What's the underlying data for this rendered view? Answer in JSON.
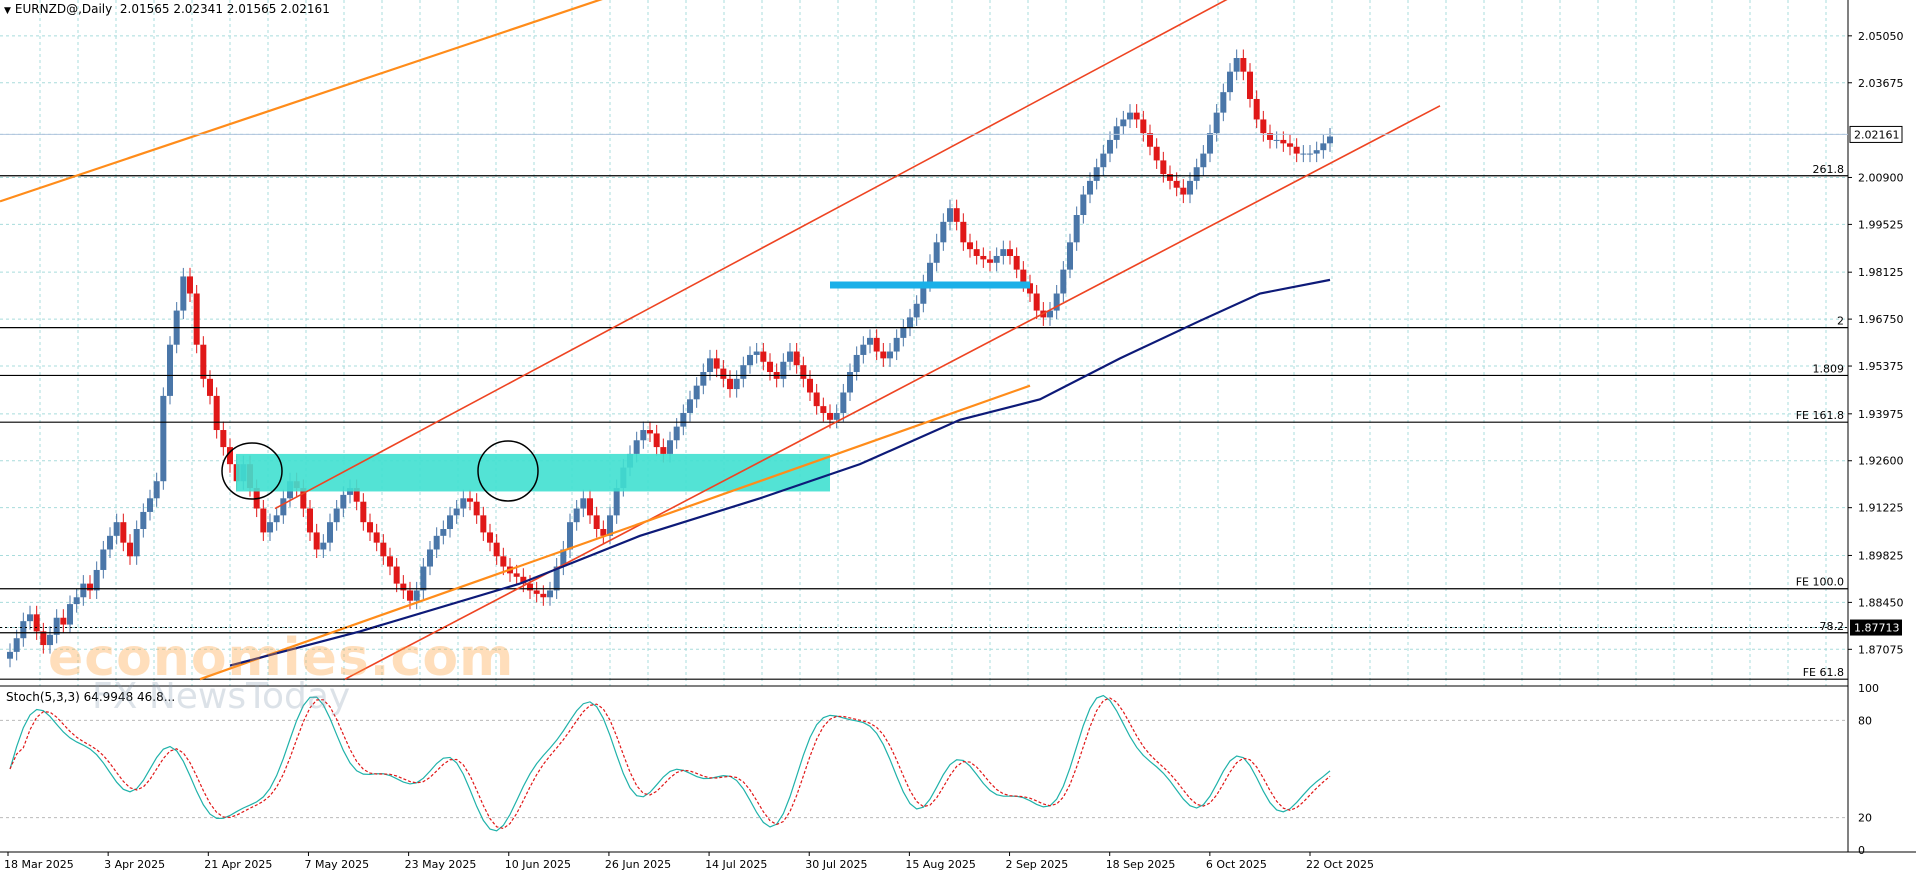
{
  "header": {
    "symbol": "EURNZD@,Daily",
    "ohlc": "2.01565 2.02341 2.01565 2.02161"
  },
  "watermark": {
    "line1": "economies.com",
    "line2": "FX NewsToday"
  },
  "colors": {
    "bull": "#4a76a8",
    "bear": "#e01818",
    "grid": "#a8dcdc",
    "channel": "#ee4422",
    "orange": "#ff8c1a",
    "ma": "#0d1a78",
    "zone": "#40e0d0",
    "cyan_line": "#1ab0e8",
    "stoch_main": "#20b2aa",
    "stoch_signal": "#e01818"
  },
  "chart_data": {
    "type": "candlestick",
    "title": "EURNZD@,Daily",
    "price_axis": {
      "range": [
        1.86,
        2.061
      ],
      "ticks": [
        "2.05050",
        "2.03675",
        "2.02161",
        "2.00900",
        "1.99525",
        "1.98125",
        "1.96750",
        "1.95375",
        "1.93975",
        "1.92600",
        "1.91225",
        "1.89825",
        "1.88450",
        "1.87713",
        "1.87075"
      ],
      "current_price": "2.02161",
      "dashed_price": "1.87713"
    },
    "date_axis": {
      "labels": [
        "18 Mar 2025",
        "3 Apr 2025",
        "21 Apr 2025",
        "7 May 2025",
        "23 May 2025",
        "10 Jun 2025",
        "26 Jun 2025",
        "14 Jul 2025",
        "30 Jul 2025",
        "15 Aug 2025",
        "2 Sep 2025",
        "18 Sep 2025",
        "6 Oct 2025",
        "22 Oct 2025"
      ]
    },
    "horizontal_levels": [
      {
        "label": "261.8",
        "price": 2.0095
      },
      {
        "label": "2",
        "price": 1.965
      },
      {
        "label": "1.809",
        "price": 1.951
      },
      {
        "label": "FE 161.8",
        "price": 1.9373
      },
      {
        "label": "FE 100.0",
        "price": 1.8885
      },
      {
        "label": "78.2",
        "price": 1.8756
      },
      {
        "label": "FE 61.8",
        "price": 1.862
      }
    ],
    "candles_close": [
      1.87,
      1.874,
      1.879,
      1.881,
      1.876,
      1.872,
      1.875,
      1.88,
      1.878,
      1.884,
      1.886,
      1.89,
      1.888,
      1.894,
      1.9,
      1.904,
      1.908,
      1.902,
      1.898,
      1.906,
      1.911,
      1.915,
      1.92,
      1.945,
      1.96,
      1.97,
      1.98,
      1.975,
      1.96,
      1.95,
      1.945,
      1.935,
      1.93,
      1.925,
      1.92,
      1.925,
      1.918,
      1.912,
      1.905,
      1.908,
      1.91,
      1.915,
      1.92,
      1.918,
      1.912,
      1.905,
      1.9,
      1.902,
      1.908,
      1.912,
      1.916,
      1.918,
      1.914,
      1.908,
      1.905,
      1.902,
      1.898,
      1.895,
      1.89,
      1.888,
      1.885,
      1.888,
      1.895,
      1.9,
      1.904,
      1.906,
      1.91,
      1.912,
      1.915,
      1.914,
      1.91,
      1.905,
      1.902,
      1.898,
      1.895,
      1.893,
      1.892,
      1.89,
      1.888,
      1.887,
      1.886,
      1.888,
      1.895,
      1.9,
      1.908,
      1.912,
      1.915,
      1.91,
      1.906,
      1.904,
      1.91,
      1.918,
      1.924,
      1.928,
      1.932,
      1.935,
      1.934,
      1.93,
      1.928,
      1.932,
      1.936,
      1.94,
      1.944,
      1.948,
      1.952,
      1.956,
      1.953,
      1.95,
      1.947,
      1.95,
      1.954,
      1.957,
      1.958,
      1.955,
      1.952,
      1.95,
      1.955,
      1.958,
      1.954,
      1.95,
      1.946,
      1.942,
      1.94,
      1.938,
      1.94,
      1.946,
      1.952,
      1.957,
      1.96,
      1.962,
      1.958,
      1.956,
      1.958,
      1.962,
      1.965,
      1.968,
      1.972,
      1.978,
      1.984,
      1.99,
      1.996,
      2.0,
      1.996,
      1.99,
      1.988,
      1.986,
      1.985,
      1.984,
      1.986,
      1.988,
      1.986,
      1.982,
      1.978,
      1.975,
      1.97,
      1.968,
      1.97,
      1.975,
      1.982,
      1.99,
      1.998,
      2.004,
      2.008,
      2.012,
      2.016,
      2.02,
      2.024,
      2.026,
      2.028,
      2.026,
      2.022,
      2.018,
      2.014,
      2.01,
      2.008,
      2.006,
      2.004,
      2.008,
      2.012,
      2.016,
      2.022,
      2.028,
      2.034,
      2.04,
      2.044,
      2.04,
      2.032,
      2.026,
      2.022,
      2.02,
      2.02,
      2.019,
      2.018,
      2.016,
      2.016,
      2.016,
      2.017,
      2.019,
      2.021
    ],
    "zones": [
      {
        "type": "rectangle",
        "from_date": "21 Apr 2025",
        "to_date": "30 Jul 2025",
        "price_low": 1.917,
        "price_high": 1.928
      },
      {
        "type": "segment",
        "label": "cyan",
        "price": 1.9775
      }
    ],
    "stochastic": {
      "label": "Stoch(5,3,3) 64.9948 46.8...",
      "range": [
        0,
        100
      ],
      "ticks": [
        "100",
        "80",
        "20",
        "0"
      ]
    }
  }
}
